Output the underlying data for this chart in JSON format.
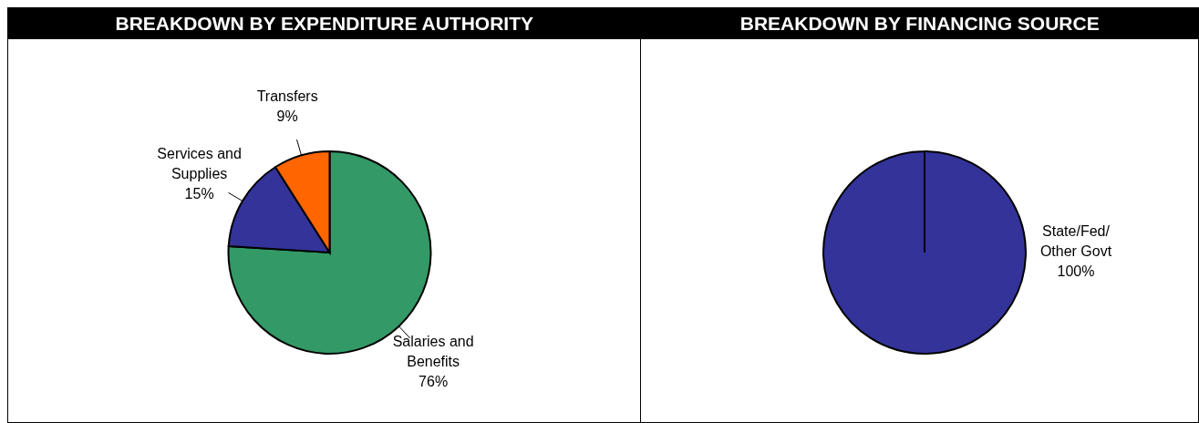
{
  "chart_data": [
    {
      "type": "pie",
      "title": "BREAKDOWN BY EXPENDITURE AUTHORITY",
      "categories": [
        "Salaries and Benefits",
        "Services and Supplies",
        "Transfers"
      ],
      "values": [
        76,
        15,
        9
      ],
      "value_labels": [
        "76%",
        "15%",
        "9%"
      ],
      "colors": [
        "#339966",
        "#333399",
        "#ff6600"
      ],
      "legend": false
    },
    {
      "type": "pie",
      "title": "BREAKDOWN BY FINANCING SOURCE",
      "categories": [
        "State/Fed/Other Govt"
      ],
      "values": [
        100
      ],
      "value_labels": [
        "100%"
      ],
      "colors": [
        "#333399"
      ],
      "legend": false
    }
  ]
}
